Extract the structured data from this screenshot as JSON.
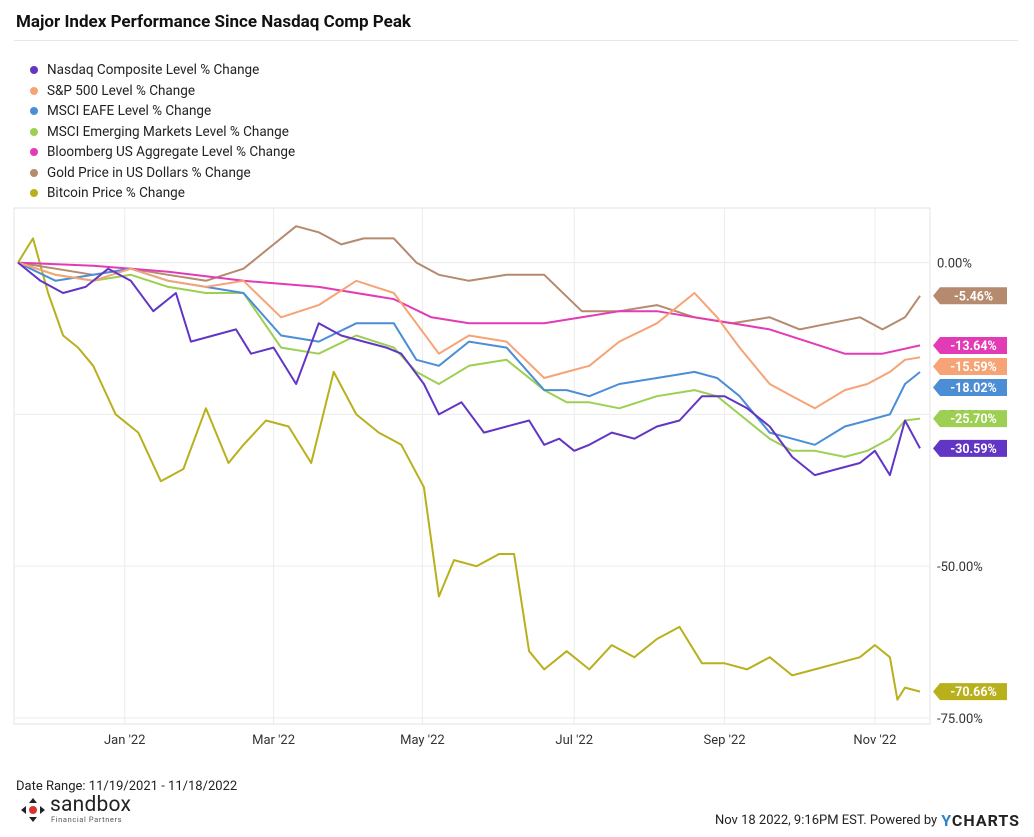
{
  "chart_data": {
    "type": "line",
    "title": "Major Index Performance Since Nasdaq Comp Peak",
    "ylim": [
      -76,
      9
    ],
    "y_ticks": [
      {
        "value": 0,
        "label": "0.00%"
      },
      {
        "value": -25,
        "label": "-25.00%"
      },
      {
        "value": -50,
        "label": "-50.00%"
      },
      {
        "value": -75,
        "label": "-75.00%"
      }
    ],
    "x_range": [
      0,
      12.0
    ],
    "x_ticks": [
      {
        "value": 1.42,
        "label": "Jan '22"
      },
      {
        "value": 3.4,
        "label": "Mar '22"
      },
      {
        "value": 5.38,
        "label": "May '22"
      },
      {
        "value": 7.4,
        "label": "Jul '22"
      },
      {
        "value": 9.4,
        "label": "Sep '22"
      },
      {
        "value": 11.4,
        "label": "Nov '22"
      }
    ],
    "series": [
      {
        "name": "Nasdaq Composite Level % Change",
        "color": "#6236c5",
        "last_label": "-30.59%",
        "x": [
          0,
          0.3,
          0.6,
          0.9,
          1.2,
          1.5,
          1.8,
          2.1,
          2.3,
          2.6,
          2.9,
          3.1,
          3.4,
          3.7,
          4.0,
          4.3,
          4.6,
          4.9,
          5.1,
          5.4,
          5.6,
          5.9,
          6.2,
          6.5,
          6.8,
          7.0,
          7.2,
          7.4,
          7.6,
          7.9,
          8.2,
          8.5,
          8.8,
          9.1,
          9.4,
          9.7,
          10.0,
          10.3,
          10.6,
          10.9,
          11.2,
          11.4,
          11.6,
          11.8,
          12.0
        ],
        "y": [
          0,
          -3,
          -5,
          -4,
          -1,
          -3,
          -8,
          -5,
          -13,
          -12,
          -11,
          -15,
          -14,
          -20,
          -10,
          -12,
          -13,
          -14,
          -15,
          -20,
          -25,
          -23,
          -28,
          -27,
          -26,
          -30,
          -29,
          -31,
          -30,
          -28,
          -29,
          -27,
          -26,
          -22,
          -22,
          -24,
          -27,
          -32,
          -35,
          -34,
          -33,
          -31,
          -35,
          -26,
          -30.59
        ]
      },
      {
        "name": "S&P 500 Level % Change",
        "color": "#f6a476",
        "last_label": "-15.59%",
        "x": [
          0,
          0.5,
          1.0,
          1.5,
          2.0,
          2.5,
          3.0,
          3.5,
          4.0,
          4.5,
          5.0,
          5.3,
          5.6,
          6.0,
          6.5,
          7.0,
          7.3,
          7.6,
          8.0,
          8.5,
          9.0,
          9.3,
          9.6,
          10.0,
          10.3,
          10.6,
          11.0,
          11.3,
          11.6,
          11.8,
          12.0
        ],
        "y": [
          0,
          -2,
          -3,
          -1,
          -3,
          -4,
          -3,
          -9,
          -7,
          -3,
          -5,
          -10,
          -15,
          -12,
          -13,
          -19,
          -18,
          -17,
          -13,
          -10,
          -5,
          -9,
          -14,
          -20,
          -22,
          -24,
          -21,
          -20,
          -18,
          -16,
          -15.59
        ]
      },
      {
        "name": "MSCI EAFE Level % Change",
        "color": "#4c8ed6",
        "last_label": "-18.02%",
        "x": [
          0,
          0.5,
          1.0,
          1.5,
          2.0,
          2.5,
          3.0,
          3.5,
          4.0,
          4.5,
          5.0,
          5.3,
          5.6,
          6.0,
          6.5,
          7.0,
          7.3,
          7.6,
          8.0,
          8.5,
          9.0,
          9.3,
          9.6,
          10.0,
          10.3,
          10.6,
          11.0,
          11.3,
          11.6,
          11.8,
          12.0
        ],
        "y": [
          0,
          -3,
          -2,
          -1,
          -3,
          -4,
          -5,
          -12,
          -13,
          -10,
          -10,
          -16,
          -17,
          -13,
          -14,
          -21,
          -21,
          -22,
          -20,
          -19,
          -18,
          -19,
          -22,
          -28,
          -29,
          -30,
          -27,
          -26,
          -25,
          -20,
          -18.02
        ]
      },
      {
        "name": "MSCI Emerging Markets Level % Change",
        "color": "#9ccf52",
        "last_label": "-25.70%",
        "x": [
          0,
          0.5,
          1.0,
          1.5,
          2.0,
          2.5,
          3.0,
          3.5,
          4.0,
          4.5,
          5.0,
          5.3,
          5.6,
          6.0,
          6.5,
          7.0,
          7.3,
          7.6,
          8.0,
          8.5,
          9.0,
          9.3,
          9.6,
          10.0,
          10.3,
          10.6,
          11.0,
          11.3,
          11.6,
          11.8,
          12.0
        ],
        "y": [
          0,
          -2,
          -3,
          -2,
          -4,
          -5,
          -5,
          -14,
          -15,
          -12,
          -14,
          -18,
          -20,
          -17,
          -16,
          -21,
          -23,
          -23,
          -24,
          -22,
          -21,
          -22,
          -25,
          -29,
          -31,
          -31,
          -32,
          -31,
          -29,
          -26,
          -25.7
        ]
      },
      {
        "name": "Bloomberg US Aggregate Level % Change",
        "color": "#e33bb5",
        "last_label": "-13.64%",
        "x": [
          0,
          1.0,
          2.0,
          3.0,
          4.0,
          5.0,
          5.5,
          6.0,
          7.0,
          7.5,
          8.0,
          8.5,
          9.0,
          9.5,
          10.0,
          10.5,
          11.0,
          11.5,
          12.0
        ],
        "y": [
          0,
          -0.5,
          -1.5,
          -3,
          -4,
          -6,
          -9,
          -10,
          -10,
          -9,
          -8,
          -8,
          -9,
          -10,
          -11,
          -13,
          -15,
          -15,
          -13.64
        ]
      },
      {
        "name": "Gold Price in US Dollars % Change",
        "color": "#b58a6e",
        "last_label": "-5.46%",
        "x": [
          0,
          0.5,
          1.0,
          1.5,
          2.0,
          2.5,
          3.0,
          3.4,
          3.7,
          4.0,
          4.3,
          4.6,
          5.0,
          5.3,
          5.6,
          6.0,
          6.5,
          7.0,
          7.5,
          8.0,
          8.5,
          9.0,
          9.5,
          10.0,
          10.4,
          10.8,
          11.2,
          11.5,
          11.8,
          12.0
        ],
        "y": [
          0,
          -1,
          -2,
          -1,
          -2,
          -3,
          -1,
          3,
          6,
          5,
          3,
          4,
          4,
          0,
          -2,
          -3,
          -2,
          -2,
          -8,
          -8,
          -7,
          -9,
          -10,
          -9,
          -11,
          -10,
          -9,
          -11,
          -9,
          -5.46
        ]
      },
      {
        "name": "Bitcoin Price % Change",
        "color": "#b8b01d",
        "last_label": "-70.66%",
        "x": [
          0,
          0.2,
          0.4,
          0.6,
          0.8,
          1.0,
          1.3,
          1.6,
          1.9,
          2.2,
          2.5,
          2.8,
          3.0,
          3.3,
          3.6,
          3.9,
          4.2,
          4.5,
          4.8,
          5.1,
          5.4,
          5.6,
          5.8,
          6.1,
          6.4,
          6.6,
          6.8,
          7.0,
          7.3,
          7.6,
          7.9,
          8.2,
          8.5,
          8.8,
          9.1,
          9.4,
          9.7,
          10.0,
          10.3,
          10.6,
          10.9,
          11.2,
          11.4,
          11.6,
          11.7,
          11.8,
          12.0
        ],
        "y": [
          0,
          4,
          -5,
          -12,
          -14,
          -17,
          -25,
          -28,
          -36,
          -34,
          -24,
          -33,
          -30,
          -26,
          -27,
          -33,
          -18,
          -25,
          -28,
          -30,
          -37,
          -55,
          -49,
          -50,
          -48,
          -48,
          -64,
          -67,
          -64,
          -67,
          -63,
          -65,
          -62,
          -60,
          -66,
          -66,
          -67,
          -65,
          -68,
          -67,
          -66,
          -65,
          -63,
          -65,
          -72,
          -70,
          -70.66
        ]
      }
    ]
  },
  "footer": {
    "date_range": "Date Range: 11/19/2021 - 11/18/2022",
    "timestamp": "Nov 18 2022, 9:16PM EST. Powered by",
    "ycharts": "YCHARTS",
    "logo_name": "sandbox",
    "logo_sub": "Financial Partners"
  }
}
